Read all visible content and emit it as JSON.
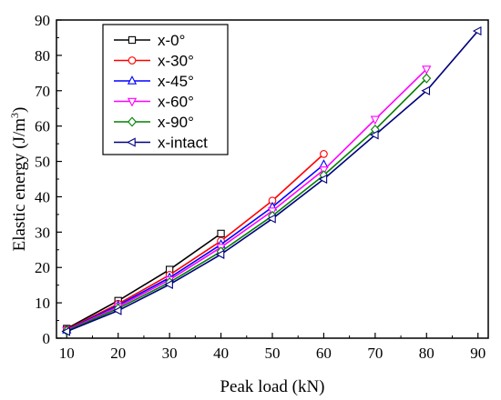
{
  "chart_data": {
    "type": "line",
    "xlabel": "Peak load (kN)",
    "ylabel": "Elastic energy (J/m",
    "ylabel_sup": "3",
    "ylabel_close": ")",
    "xlim": [
      8,
      92
    ],
    "ylim": [
      0,
      90
    ],
    "xticks": [
      10,
      20,
      30,
      40,
      50,
      60,
      70,
      80,
      90
    ],
    "yticks": [
      0,
      10,
      20,
      30,
      40,
      50,
      60,
      70,
      80,
      90
    ],
    "legend_position": "top-left",
    "series": [
      {
        "name": "x-0°",
        "color": "#000000",
        "marker": "square",
        "x": [
          10,
          20,
          30,
          40
        ],
        "y": [
          2.7,
          10.6,
          19.4,
          29.6
        ]
      },
      {
        "name": "x-30°",
        "color": "#ff0000",
        "marker": "circle",
        "x": [
          10,
          20,
          30,
          40,
          50,
          60
        ],
        "y": [
          2.5,
          9.7,
          17.9,
          27.5,
          38.9,
          52.1
        ]
      },
      {
        "name": "x-45°",
        "color": "#0000ff",
        "marker": "triangle-up",
        "x": [
          10,
          20,
          30,
          40,
          50,
          60
        ],
        "y": [
          2.3,
          9.3,
          17.1,
          26.5,
          37.1,
          49.1
        ]
      },
      {
        "name": "x-60°",
        "color": "#ff00ff",
        "marker": "triangle-down",
        "x": [
          10,
          20,
          30,
          40,
          50,
          60,
          70,
          80
        ],
        "y": [
          2.2,
          8.9,
          16.5,
          25.7,
          36.0,
          47.6,
          61.9,
          76.1
        ]
      },
      {
        "name": "x-90°",
        "color": "#008000",
        "marker": "diamond",
        "x": [
          10,
          20,
          30,
          40,
          50,
          60,
          70,
          80
        ],
        "y": [
          2.1,
          8.4,
          15.8,
          24.5,
          34.6,
          46.1,
          59.0,
          73.5
        ]
      },
      {
        "name": "x-intact",
        "color": "#000080",
        "marker": "triangle-left",
        "x": [
          10,
          20,
          30,
          40,
          50,
          60,
          70,
          80,
          90
        ],
        "y": [
          1.9,
          7.8,
          15.2,
          23.7,
          33.8,
          45.0,
          57.5,
          70.0,
          86.9
        ]
      }
    ]
  }
}
